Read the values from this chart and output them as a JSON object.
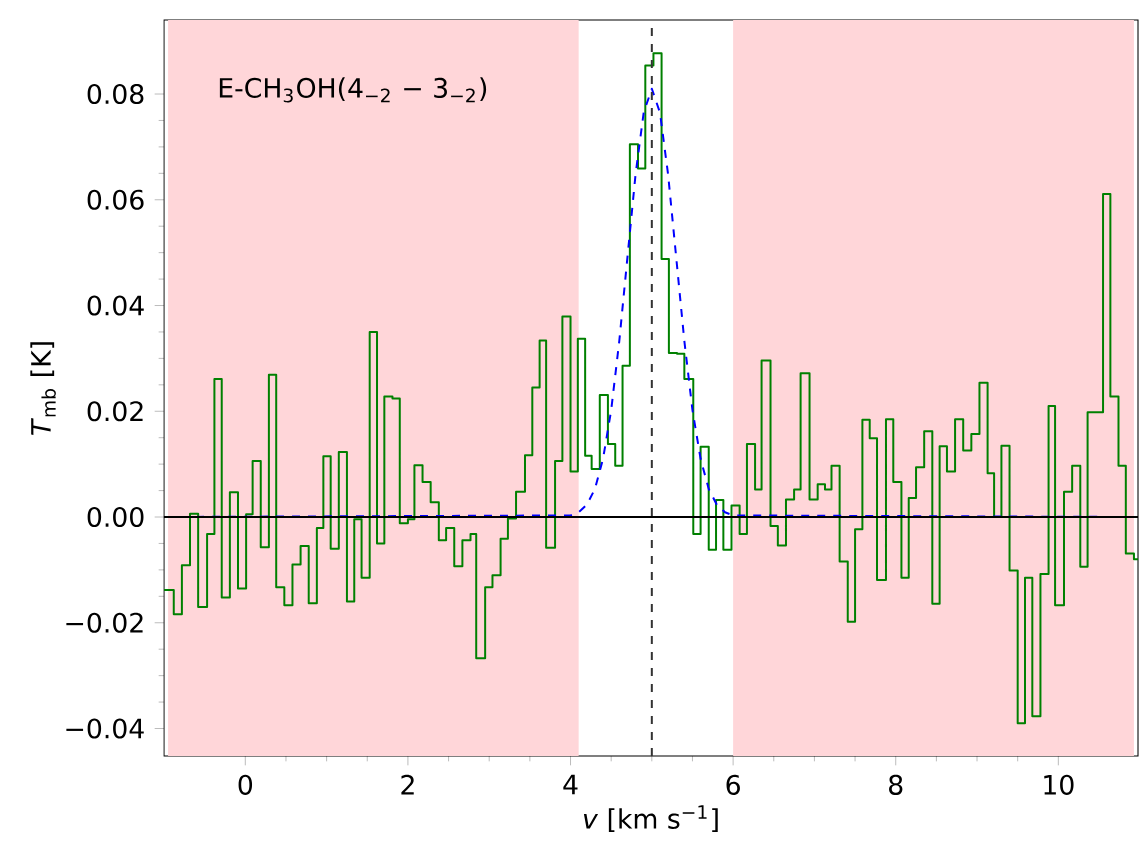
{
  "chart_data": {
    "type": "step",
    "xlabel": "*v* [km s$^{−1}$]",
    "ylabel": "*T*$_{mb}$ [K]",
    "annotations": [
      "E-CH$_{3}$OH(4$_{−2}$ − 3$_{−2}$)"
    ],
    "xlim": [
      -1.0,
      10.98
    ],
    "ylim": [
      -0.0452,
      0.094
    ],
    "xticks": [
      0,
      2,
      4,
      6,
      8,
      10
    ],
    "yticks": [
      {
        "value": -0.04,
        "label": "−0.04"
      },
      {
        "value": -0.02,
        "label": "−0.02"
      },
      {
        "value": 0,
        "label": "0.00"
      },
      {
        "value": 0.02,
        "label": "0.02"
      },
      {
        "value": 0.04,
        "label": "0.04"
      },
      {
        "value": 0.06,
        "label": "0.06"
      },
      {
        "value": 0.08,
        "label": "0.08"
      }
    ],
    "series": [
      {
        "color": "#008000",
        "line_style": "solid",
        "x": [
          -1.0,
          -0.88,
          -0.78,
          -0.68,
          -0.58,
          -0.47,
          -0.38,
          -0.29,
          -0.19,
          -0.09,
          0.01,
          0.09,
          0.19,
          0.29,
          0.38,
          0.48,
          0.58,
          0.68,
          0.78,
          0.88,
          0.96,
          1.05,
          1.15,
          1.25,
          1.34,
          1.43,
          1.53,
          1.62,
          1.71,
          1.81,
          1.9,
          2.0,
          2.08,
          2.18,
          2.28,
          2.38,
          2.47,
          2.57,
          2.67,
          2.77,
          2.84,
          2.95,
          3.04,
          3.14,
          3.23,
          3.33,
          3.44,
          3.53,
          3.62,
          3.7,
          3.81,
          3.9,
          4.0,
          4.09,
          4.18,
          4.26,
          4.36,
          4.46,
          4.55,
          4.64,
          4.73,
          4.83,
          4.92,
          5.02,
          5.12,
          5.21,
          5.31,
          5.4,
          5.51,
          5.6,
          5.7,
          5.79,
          5.88,
          5.98,
          6.08,
          6.17,
          6.27,
          6.35,
          6.46,
          6.55,
          6.65,
          6.75,
          6.83,
          6.94,
          7.04,
          7.13,
          7.21,
          7.31,
          7.41,
          7.5,
          7.59,
          7.68,
          7.77,
          7.88,
          7.97,
          8.07,
          8.16,
          8.25,
          8.35,
          8.45,
          8.54,
          8.63,
          8.73,
          8.83,
          8.93,
          9.03,
          9.13,
          9.21,
          9.3,
          9.4,
          9.5,
          9.59,
          9.68,
          9.78,
          9.88,
          9.96,
          10.07,
          10.17,
          10.27,
          10.36,
          10.46,
          10.55,
          10.64,
          10.74,
          10.83,
          10.93
        ],
        "values": [
          -0.0138,
          -0.0184,
          -0.0091,
          0.0006,
          -0.017,
          -0.0032,
          0.0261,
          -0.0152,
          0.0047,
          -0.0135,
          0.0005,
          0.0106,
          -0.0057,
          0.0269,
          -0.0133,
          -0.0167,
          -0.009,
          -0.0055,
          -0.0163,
          -0.0021,
          0.0115,
          -0.006,
          0.0123,
          -0.016,
          -0.0004,
          -0.0115,
          0.035,
          -0.005,
          0.0228,
          0.0224,
          -0.0012,
          -0.0004,
          0.0098,
          0.0066,
          0.0028,
          -0.0044,
          -0.0021,
          -0.0093,
          -0.0044,
          -0.0032,
          -0.0267,
          -0.0133,
          -0.011,
          -0.0041,
          -0.0003,
          0.0048,
          0.0117,
          0.0245,
          0.0334,
          -0.0058,
          0.0106,
          0.0379,
          0.0086,
          0.0337,
          0.0116,
          0.0091,
          0.0231,
          0.0138,
          0.0097,
          0.0286,
          0.0705,
          0.0659,
          0.0854,
          0.0877,
          0.0488,
          0.031,
          0.0309,
          0.0261,
          -0.0032,
          0.0133,
          -0.0062,
          0.0032,
          -0.0062,
          0.0022,
          -0.0032,
          0.0138,
          0.0052,
          0.0296,
          -0.0017,
          -0.0054,
          0.0033,
          0.0052,
          0.0272,
          0.0033,
          0.0062,
          0.0052,
          0.0097,
          -0.0084,
          -0.0198,
          -0.0023,
          0.0184,
          0.0149,
          -0.0119,
          0.0185,
          0.0066,
          -0.0115,
          0.0036,
          0.0094,
          0.0162,
          -0.0164,
          0.0134,
          0.0086,
          0.0185,
          0.0126,
          0.0157,
          0.0254,
          0.0083,
          0.0,
          0.0135,
          -0.0101,
          -0.039,
          -0.0115,
          -0.0377,
          -0.0108,
          0.021,
          -0.0167,
          0.0048,
          0.0097,
          -0.0094,
          0.0198,
          0.0198,
          0.0611,
          0.0228,
          0.0097,
          -0.0069,
          -0.008
        ]
      },
      {
        "type": "line",
        "color": "#0000ff",
        "line_style": "dashed",
        "x": [
          -1.0,
          4.0,
          4.1,
          4.2,
          4.3,
          4.4,
          4.5,
          4.6,
          4.7,
          4.8,
          4.9,
          5.0,
          5.1,
          5.2,
          5.3,
          5.4,
          5.5,
          5.6,
          5.7,
          5.8,
          5.9,
          6.0,
          10.98
        ],
        "values": [
          0.0,
          0.0003,
          0.0009,
          0.0023,
          0.0053,
          0.011,
          0.0202,
          0.0333,
          0.0491,
          0.0648,
          0.0765,
          0.081,
          0.0765,
          0.0648,
          0.0491,
          0.0333,
          0.0202,
          0.011,
          0.0053,
          0.0023,
          0.0009,
          0.0003,
          0.0
        ]
      }
    ],
    "ref_lines": [
      {
        "axis": "x",
        "value": 5.0,
        "color": "#333333",
        "line_style": "dashed"
      },
      {
        "axis": "y",
        "value": 0,
        "color": "#000000",
        "line_style": "solid"
      }
    ],
    "bands": [
      {
        "axis": "x",
        "from": -0.95,
        "to": 4.1,
        "color": "#ffd6d9"
      },
      {
        "axis": "x",
        "from": 6.0,
        "to": 10.93,
        "color": "#ffd6d9"
      }
    ]
  }
}
